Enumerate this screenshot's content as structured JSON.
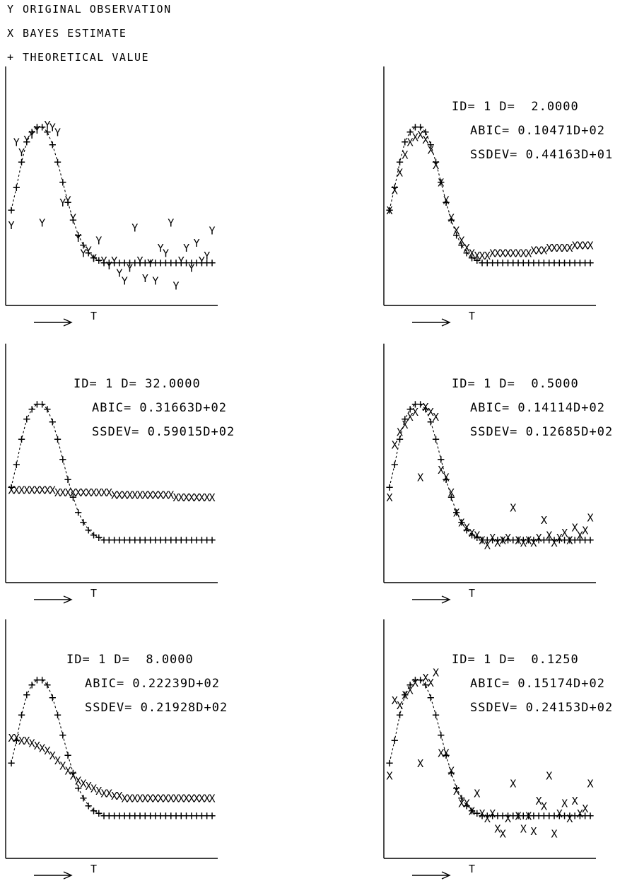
{
  "legend": [
    {
      "marker": "Y",
      "label": "ORIGINAL OBSERVATION"
    },
    {
      "marker": "X",
      "label": "BAYES ESTIMATE"
    },
    {
      "marker": "+",
      "label": "THEORETICAL VALUE"
    }
  ],
  "chart_data": [
    {
      "type": "scatter",
      "panel": "top-left",
      "xlabel": "T",
      "annotations": [],
      "x": [
        1,
        2,
        3,
        4,
        5,
        6,
        7,
        8,
        9,
        10,
        11,
        12,
        13,
        14,
        15,
        16,
        17,
        18,
        19,
        20,
        21,
        22,
        23,
        24,
        25,
        26,
        27,
        28,
        29,
        30,
        31,
        32,
        33,
        34,
        35,
        36,
        37,
        38,
        39,
        40
      ],
      "series": [
        {
          "marker": "+",
          "values": [
            0.38,
            0.47,
            0.57,
            0.65,
            0.69,
            0.71,
            0.71,
            0.69,
            0.64,
            0.57,
            0.49,
            0.41,
            0.34,
            0.28,
            0.24,
            0.21,
            0.19,
            0.18,
            0.17,
            0.17,
            0.17,
            0.17,
            0.17,
            0.17,
            0.17,
            0.17,
            0.17,
            0.17,
            0.17,
            0.17,
            0.17,
            0.17,
            0.17,
            0.17,
            0.17,
            0.17,
            0.17,
            0.17,
            0.17,
            0.17
          ]
        },
        {
          "marker": "Y",
          "values": [
            0.32,
            0.65,
            0.61,
            0.66,
            0.68,
            0.7,
            0.33,
            0.72,
            0.71,
            0.69,
            0.41,
            0.42,
            0.35,
            0.27,
            0.21,
            0.22,
            0.19,
            0.26,
            0.18,
            0.16,
            0.18,
            0.13,
            0.1,
            0.15,
            0.31,
            0.18,
            0.11,
            0.17,
            0.1,
            0.23,
            0.21,
            0.33,
            0.08,
            0.18,
            0.23,
            0.15,
            0.25,
            0.18,
            0.2,
            0.3
          ]
        }
      ]
    },
    {
      "type": "scatter",
      "panel": "top-right",
      "xlabel": "T",
      "annotations": [
        "ID= 1 D=  2.0000",
        "ABIC= 0.10471D+02",
        "SSDEV= 0.44163D+01"
      ],
      "x": [
        1,
        2,
        3,
        4,
        5,
        6,
        7,
        8,
        9,
        10,
        11,
        12,
        13,
        14,
        15,
        16,
        17,
        18,
        19,
        20,
        21,
        22,
        23,
        24,
        25,
        26,
        27,
        28,
        29,
        30,
        31,
        32,
        33,
        34,
        35,
        36,
        37,
        38,
        39,
        40
      ],
      "series": [
        {
          "marker": "+",
          "values": [
            0.38,
            0.47,
            0.57,
            0.65,
            0.69,
            0.71,
            0.71,
            0.69,
            0.64,
            0.57,
            0.49,
            0.41,
            0.34,
            0.28,
            0.24,
            0.21,
            0.19,
            0.18,
            0.17,
            0.17,
            0.17,
            0.17,
            0.17,
            0.17,
            0.17,
            0.17,
            0.17,
            0.17,
            0.17,
            0.17,
            0.17,
            0.17,
            0.17,
            0.17,
            0.17,
            0.17,
            0.17,
            0.17,
            0.17,
            0.17
          ]
        },
        {
          "marker": "X",
          "values": [
            0.38,
            0.46,
            0.53,
            0.6,
            0.65,
            0.67,
            0.68,
            0.66,
            0.62,
            0.56,
            0.49,
            0.42,
            0.35,
            0.3,
            0.26,
            0.23,
            0.21,
            0.2,
            0.2,
            0.2,
            0.21,
            0.21,
            0.21,
            0.21,
            0.21,
            0.21,
            0.21,
            0.21,
            0.22,
            0.22,
            0.22,
            0.23,
            0.23,
            0.23,
            0.23,
            0.23,
            0.24,
            0.24,
            0.24,
            0.24
          ]
        }
      ]
    },
    {
      "type": "scatter",
      "panel": "middle-left",
      "xlabel": "T",
      "annotations": [
        "ID= 1 D= 32.0000",
        "ABIC= 0.31663D+02",
        "SSDEV= 0.59015D+02"
      ],
      "x": [
        1,
        2,
        3,
        4,
        5,
        6,
        7,
        8,
        9,
        10,
        11,
        12,
        13,
        14,
        15,
        16,
        17,
        18,
        19,
        20,
        21,
        22,
        23,
        24,
        25,
        26,
        27,
        28,
        29,
        30,
        31,
        32,
        33,
        34,
        35,
        36,
        37,
        38,
        39,
        40
      ],
      "series": [
        {
          "marker": "+",
          "values": [
            0.38,
            0.47,
            0.57,
            0.65,
            0.69,
            0.71,
            0.71,
            0.69,
            0.64,
            0.57,
            0.49,
            0.41,
            0.34,
            0.28,
            0.24,
            0.21,
            0.19,
            0.18,
            0.17,
            0.17,
            0.17,
            0.17,
            0.17,
            0.17,
            0.17,
            0.17,
            0.17,
            0.17,
            0.17,
            0.17,
            0.17,
            0.17,
            0.17,
            0.17,
            0.17,
            0.17,
            0.17,
            0.17,
            0.17,
            0.17
          ]
        },
        {
          "marker": "X",
          "values": [
            0.37,
            0.37,
            0.37,
            0.37,
            0.37,
            0.37,
            0.37,
            0.37,
            0.37,
            0.36,
            0.36,
            0.36,
            0.36,
            0.36,
            0.36,
            0.36,
            0.36,
            0.36,
            0.36,
            0.36,
            0.35,
            0.35,
            0.35,
            0.35,
            0.35,
            0.35,
            0.35,
            0.35,
            0.35,
            0.35,
            0.35,
            0.35,
            0.34,
            0.34,
            0.34,
            0.34,
            0.34,
            0.34,
            0.34,
            0.34
          ]
        }
      ]
    },
    {
      "type": "scatter",
      "panel": "middle-right",
      "xlabel": "T",
      "annotations": [
        "ID= 1 D=  0.5000",
        "ABIC= 0.14114D+02",
        "SSDEV= 0.12685D+02"
      ],
      "x": [
        1,
        2,
        3,
        4,
        5,
        6,
        7,
        8,
        9,
        10,
        11,
        12,
        13,
        14,
        15,
        16,
        17,
        18,
        19,
        20,
        21,
        22,
        23,
        24,
        25,
        26,
        27,
        28,
        29,
        30,
        31,
        32,
        33,
        34,
        35,
        36,
        37,
        38,
        39,
        40
      ],
      "series": [
        {
          "marker": "+",
          "values": [
            0.38,
            0.47,
            0.57,
            0.65,
            0.69,
            0.71,
            0.71,
            0.69,
            0.64,
            0.57,
            0.49,
            0.41,
            0.34,
            0.28,
            0.24,
            0.21,
            0.19,
            0.18,
            0.17,
            0.17,
            0.17,
            0.17,
            0.17,
            0.17,
            0.17,
            0.17,
            0.17,
            0.17,
            0.17,
            0.17,
            0.17,
            0.17,
            0.17,
            0.17,
            0.17,
            0.17,
            0.17,
            0.17,
            0.17,
            0.17
          ]
        },
        {
          "marker": "X",
          "values": [
            0.34,
            0.55,
            0.6,
            0.63,
            0.66,
            0.68,
            0.42,
            0.7,
            0.68,
            0.66,
            0.45,
            0.42,
            0.36,
            0.28,
            0.24,
            0.22,
            0.2,
            0.19,
            0.17,
            0.15,
            0.18,
            0.16,
            0.17,
            0.18,
            0.3,
            0.17,
            0.16,
            0.17,
            0.16,
            0.18,
            0.25,
            0.19,
            0.16,
            0.18,
            0.2,
            0.17,
            0.22,
            0.19,
            0.21,
            0.26
          ]
        }
      ]
    },
    {
      "type": "scatter",
      "panel": "bottom-left",
      "xlabel": "T",
      "annotations": [
        "ID= 1 D=  8.0000",
        "ABIC= 0.22239D+02",
        "SSDEV= 0.21928D+02"
      ],
      "x": [
        1,
        2,
        3,
        4,
        5,
        6,
        7,
        8,
        9,
        10,
        11,
        12,
        13,
        14,
        15,
        16,
        17,
        18,
        19,
        20,
        21,
        22,
        23,
        24,
        25,
        26,
        27,
        28,
        29,
        30,
        31,
        32,
        33,
        34,
        35,
        36,
        37,
        38,
        39,
        40
      ],
      "series": [
        {
          "marker": "+",
          "values": [
            0.38,
            0.47,
            0.57,
            0.65,
            0.69,
            0.71,
            0.71,
            0.69,
            0.64,
            0.57,
            0.49,
            0.41,
            0.34,
            0.28,
            0.24,
            0.21,
            0.19,
            0.18,
            0.17,
            0.17,
            0.17,
            0.17,
            0.17,
            0.17,
            0.17,
            0.17,
            0.17,
            0.17,
            0.17,
            0.17,
            0.17,
            0.17,
            0.17,
            0.17,
            0.17,
            0.17,
            0.17,
            0.17,
            0.17,
            0.17
          ]
        },
        {
          "marker": "X",
          "values": [
            0.48,
            0.48,
            0.47,
            0.47,
            0.46,
            0.45,
            0.44,
            0.43,
            0.41,
            0.39,
            0.37,
            0.35,
            0.33,
            0.31,
            0.3,
            0.29,
            0.28,
            0.27,
            0.26,
            0.26,
            0.25,
            0.25,
            0.24,
            0.24,
            0.24,
            0.24,
            0.24,
            0.24,
            0.24,
            0.24,
            0.24,
            0.24,
            0.24,
            0.24,
            0.24,
            0.24,
            0.24,
            0.24,
            0.24,
            0.24
          ]
        }
      ]
    },
    {
      "type": "scatter",
      "panel": "bottom-right",
      "xlabel": "T",
      "annotations": [
        "ID= 1 D=  0.1250",
        "ABIC= 0.15174D+02",
        "SSDEV= 0.24153D+02"
      ],
      "x": [
        1,
        2,
        3,
        4,
        5,
        6,
        7,
        8,
        9,
        10,
        11,
        12,
        13,
        14,
        15,
        16,
        17,
        18,
        19,
        20,
        21,
        22,
        23,
        24,
        25,
        26,
        27,
        28,
        29,
        30,
        31,
        32,
        33,
        34,
        35,
        36,
        37,
        38,
        39,
        40
      ],
      "series": [
        {
          "marker": "+",
          "values": [
            0.38,
            0.47,
            0.57,
            0.65,
            0.69,
            0.71,
            0.71,
            0.69,
            0.64,
            0.57,
            0.49,
            0.41,
            0.34,
            0.28,
            0.24,
            0.21,
            0.19,
            0.18,
            0.17,
            0.17,
            0.17,
            0.17,
            0.17,
            0.17,
            0.17,
            0.17,
            0.17,
            0.17,
            0.17,
            0.17,
            0.17,
            0.17,
            0.17,
            0.17,
            0.17,
            0.17,
            0.17,
            0.17,
            0.17,
            0.17
          ]
        },
        {
          "marker": "X",
          "values": [
            0.33,
            0.63,
            0.61,
            0.65,
            0.67,
            0.7,
            0.38,
            0.72,
            0.7,
            0.74,
            0.42,
            0.42,
            0.35,
            0.27,
            0.22,
            0.22,
            0.19,
            0.26,
            0.18,
            0.16,
            0.18,
            0.12,
            0.1,
            0.16,
            0.3,
            0.17,
            0.12,
            0.17,
            0.11,
            0.23,
            0.21,
            0.33,
            0.1,
            0.18,
            0.22,
            0.16,
            0.23,
            0.18,
            0.2,
            0.3
          ]
        }
      ]
    }
  ]
}
